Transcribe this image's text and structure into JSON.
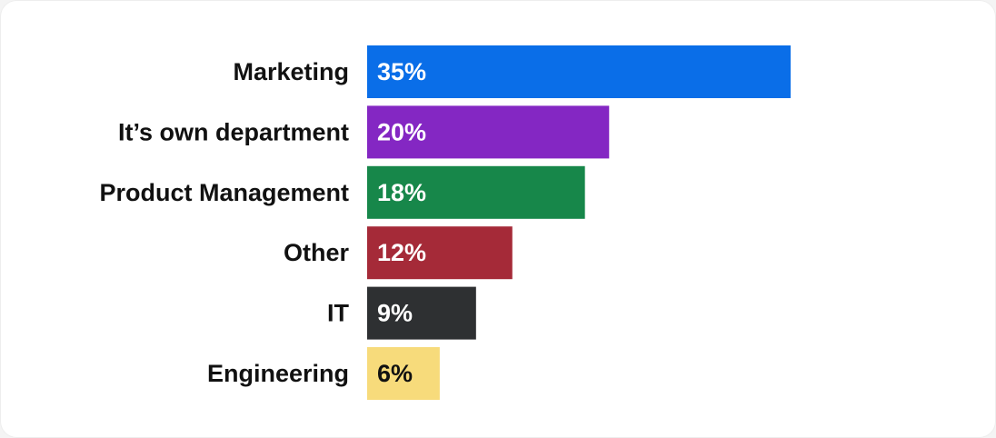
{
  "chart_data": {
    "type": "bar",
    "orientation": "horizontal",
    "categories": [
      "Marketing",
      "It’s own department",
      "Product Management",
      "Other",
      "IT",
      "Engineering"
    ],
    "values": [
      35,
      20,
      18,
      12,
      9,
      6
    ],
    "value_labels": [
      "35%",
      "20%",
      "18%",
      "12%",
      "9%",
      "6%"
    ],
    "colors": [
      "#0a6ee8",
      "#8427c3",
      "#17874a",
      "#a52a38",
      "#2e3032",
      "#f7db7b"
    ]
  }
}
